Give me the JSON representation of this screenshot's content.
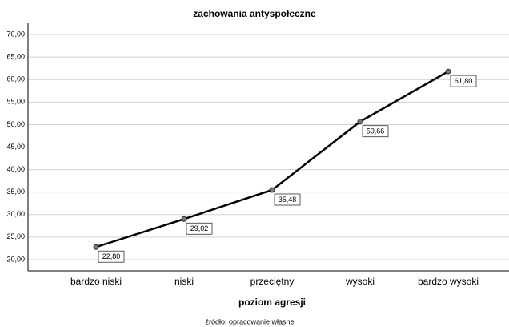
{
  "chart_data": {
    "type": "line",
    "title": "zachowania antyspołeczne",
    "x_label": "poziom agresji",
    "source": "źródło: opracowanie własne",
    "categories": [
      "bardzo niski",
      "niski",
      "przeciętny",
      "wysoki",
      "bardzo wysoki"
    ],
    "series": [
      {
        "name": "zachowania antyspołeczne",
        "color": "#000000",
        "values": [
          22.8,
          29.02,
          35.48,
          50.66,
          61.8
        ],
        "value_labels": [
          "22,80",
          "29,02",
          "35,48",
          "50,66",
          "61,80"
        ]
      }
    ],
    "ylim": [
      17.5,
      72.5
    ],
    "yticks": [
      {
        "value": 20,
        "label": "20,00"
      },
      {
        "value": 25,
        "label": "25,00"
      },
      {
        "value": 30,
        "label": "30,00"
      },
      {
        "value": 35,
        "label": "35,00"
      },
      {
        "value": 40,
        "label": "40,00"
      },
      {
        "value": 45,
        "label": "45,00"
      },
      {
        "value": 50,
        "label": "50,00"
      },
      {
        "value": 55,
        "label": "55,00"
      },
      {
        "value": 60,
        "label": "60,00"
      },
      {
        "value": 65,
        "label": "65,00"
      },
      {
        "value": 70,
        "label": "70,00"
      }
    ],
    "grid": true
  }
}
